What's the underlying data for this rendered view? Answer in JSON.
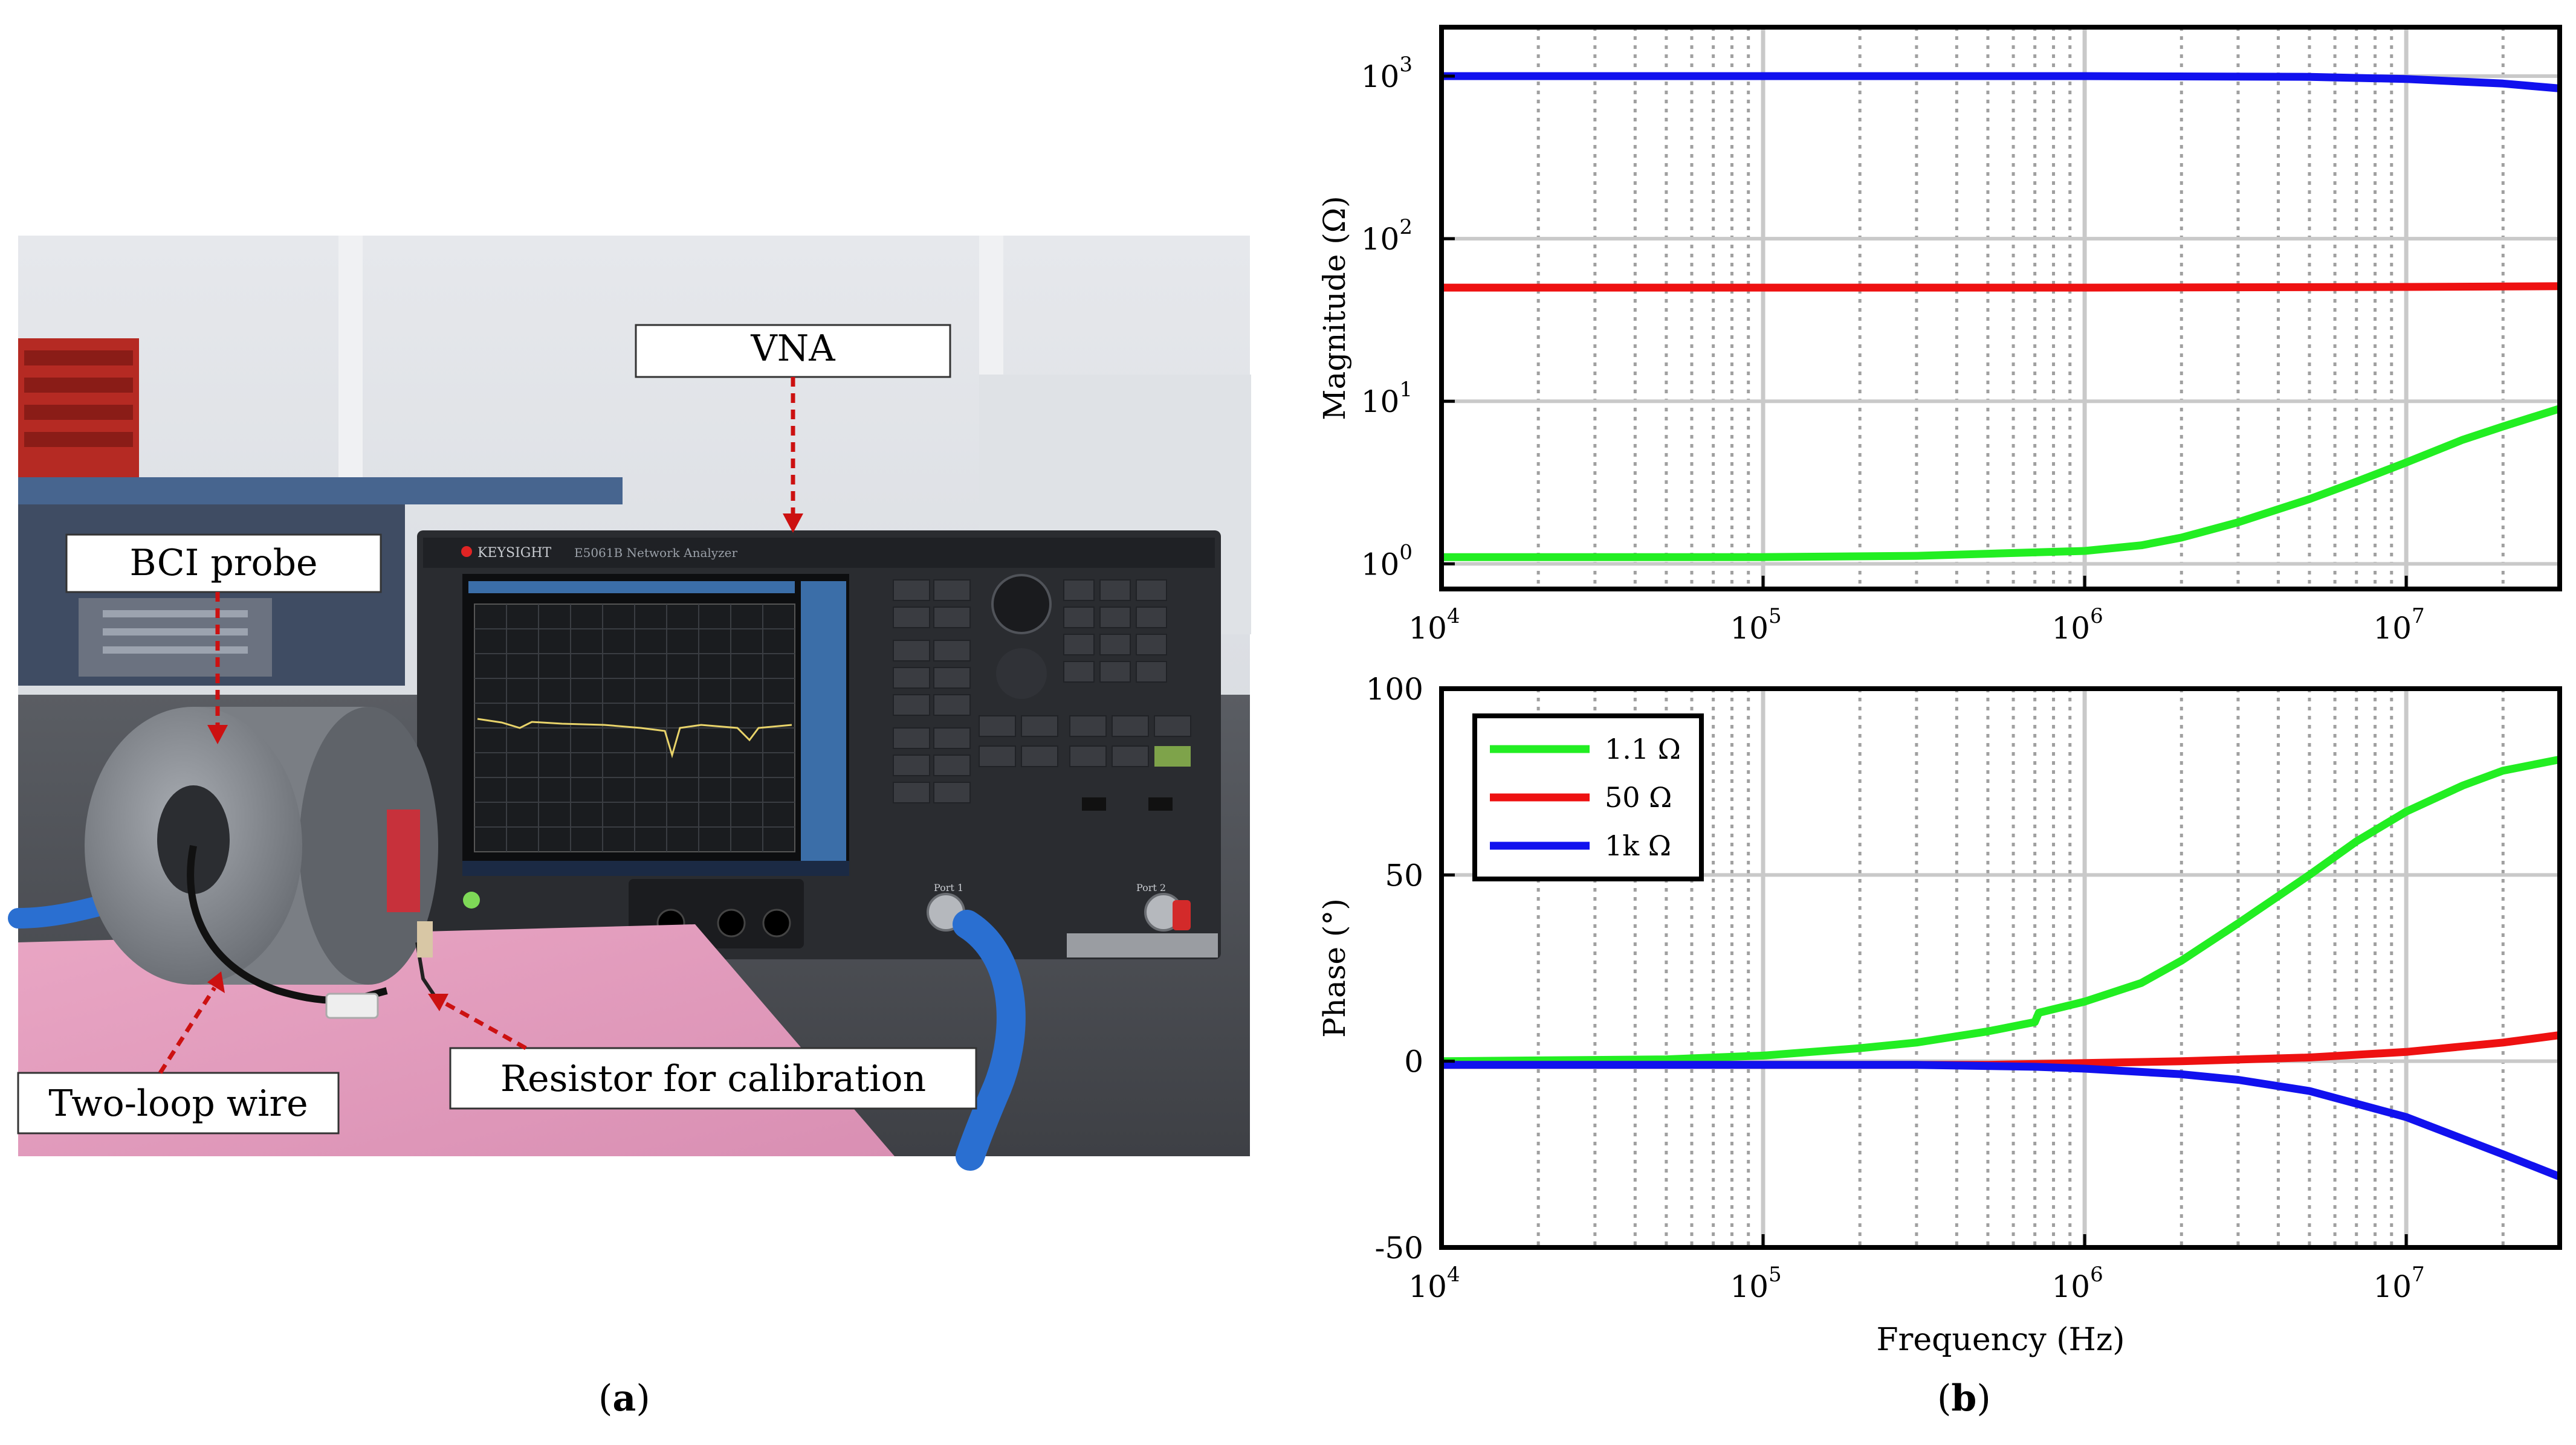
{
  "panel_a": {
    "caption_letter": "a",
    "labels": {
      "vna": "VNA",
      "bci_probe": "BCI probe",
      "two_loop_wire": "Two-loop wire",
      "resistor": "Resistor for calibration"
    },
    "instrument": {
      "brand": "KEYSIGHT",
      "model": "E5061B Network Analyzer",
      "port1": "Port 1",
      "port2": "Port 2"
    }
  },
  "panel_b": {
    "caption_letter": "b"
  },
  "colors": {
    "green": "#22ee22",
    "red": "#ee1111",
    "blue": "#1111ee",
    "arrow": "#cc1111"
  },
  "chart_data": [
    {
      "type": "line",
      "title": "",
      "xlabel": "",
      "ylabel": "Magnitude (Ω)",
      "xscale": "log",
      "yscale": "log",
      "xlim": [
        10000,
        30000000
      ],
      "ylim": [
        0.7,
        2000
      ],
      "grid": true,
      "x_ticks": [
        {
          "value": 10000,
          "base": "10",
          "exp": "4"
        },
        {
          "value": 100000,
          "base": "10",
          "exp": "5"
        },
        {
          "value": 1000000,
          "base": "10",
          "exp": "6"
        },
        {
          "value": 10000000,
          "base": "10",
          "exp": "7"
        }
      ],
      "y_ticks": [
        {
          "value": 1,
          "base": "10",
          "exp": "0"
        },
        {
          "value": 10,
          "base": "10",
          "exp": "1"
        },
        {
          "value": 100,
          "base": "10",
          "exp": "2"
        },
        {
          "value": 1000,
          "base": "10",
          "exp": "3"
        }
      ],
      "series": [
        {
          "name": "1.1 Ω",
          "color": "#22ee22",
          "x": [
            10000,
            100000,
            300000,
            1000000,
            1500000,
            2000000,
            3000000,
            5000000,
            7000000,
            10000000,
            15000000,
            20000000,
            30000000
          ],
          "y": [
            1.1,
            1.1,
            1.12,
            1.2,
            1.3,
            1.45,
            1.8,
            2.5,
            3.2,
            4.2,
            5.8,
            7.0,
            9.0
          ]
        },
        {
          "name": "50 Ω",
          "color": "#ee1111",
          "x": [
            10000,
            1000000,
            10000000,
            30000000
          ],
          "y": [
            50,
            50,
            50.5,
            51
          ]
        },
        {
          "name": "1k Ω",
          "color": "#1111ee",
          "x": [
            10000,
            1000000,
            5000000,
            10000000,
            20000000,
            30000000
          ],
          "y": [
            1000,
            1000,
            990,
            960,
            900,
            840
          ]
        }
      ]
    },
    {
      "type": "line",
      "title": "",
      "xlabel": "Frequency (Hz)",
      "ylabel": "Phase (°)",
      "xscale": "log",
      "yscale": "linear",
      "xlim": [
        10000,
        30000000
      ],
      "ylim": [
        -50,
        100
      ],
      "grid": true,
      "legend_position": "top-left",
      "x_ticks": [
        {
          "value": 10000,
          "base": "10",
          "exp": "4"
        },
        {
          "value": 100000,
          "base": "10",
          "exp": "5"
        },
        {
          "value": 1000000,
          "base": "10",
          "exp": "6"
        },
        {
          "value": 10000000,
          "base": "10",
          "exp": "7"
        }
      ],
      "y_ticks": [
        {
          "value": -50,
          "label": "-50"
        },
        {
          "value": 0,
          "label": "0"
        },
        {
          "value": 50,
          "label": "50"
        },
        {
          "value": 100,
          "label": "100"
        }
      ],
      "series": [
        {
          "name": "1.1 Ω",
          "color": "#22ee22",
          "x": [
            10000,
            50000,
            100000,
            200000,
            300000,
            500000,
            700000,
            720000,
            1000000,
            1500000,
            2000000,
            3000000,
            5000000,
            7000000,
            10000000,
            15000000,
            20000000,
            30000000
          ],
          "y": [
            0,
            0.5,
            1.5,
            3.5,
            5,
            8,
            10.5,
            13,
            16,
            21,
            27,
            37,
            50,
            59,
            67,
            74,
            78,
            81
          ]
        },
        {
          "name": "50 Ω",
          "color": "#ee1111",
          "x": [
            10000,
            500000,
            1000000,
            2000000,
            5000000,
            10000000,
            20000000,
            30000000
          ],
          "y": [
            -1,
            -1,
            -0.5,
            0,
            1,
            2.5,
            5,
            7
          ]
        },
        {
          "name": "1k Ω",
          "color": "#1111ee",
          "x": [
            10000,
            300000,
            700000,
            1000000,
            2000000,
            3000000,
            5000000,
            10000000,
            20000000,
            30000000
          ],
          "y": [
            -1,
            -1,
            -1.5,
            -2,
            -3.5,
            -5,
            -8,
            -15,
            -25,
            -31
          ]
        }
      ]
    }
  ]
}
